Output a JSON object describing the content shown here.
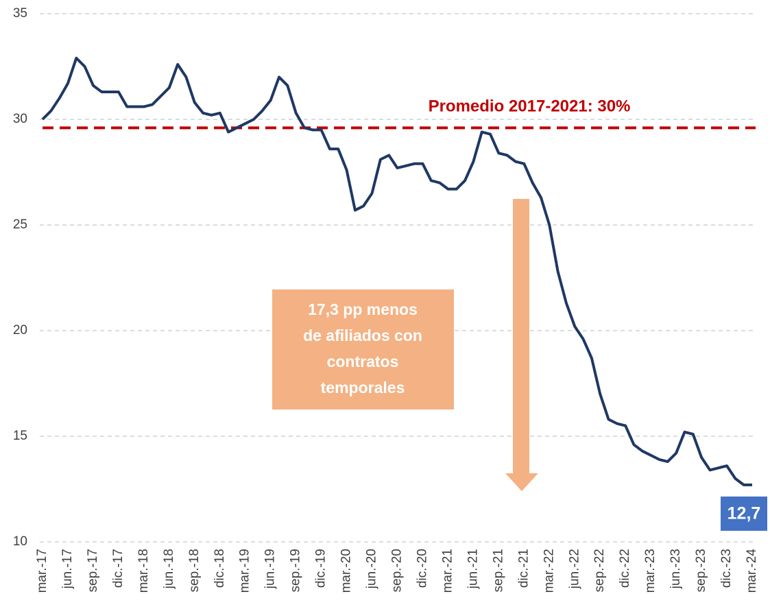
{
  "chart_data": {
    "type": "line",
    "categories": [
      "mar.-17",
      null,
      null,
      "jun.-17",
      null,
      null,
      "sep.-17",
      null,
      null,
      "dic.-17",
      null,
      null,
      "mar.-18",
      null,
      null,
      "jun.-18",
      null,
      null,
      "sep.-18",
      null,
      null,
      "dic.-18",
      null,
      null,
      "mar.-19",
      null,
      null,
      "jun.-19",
      null,
      null,
      "sep.-19",
      null,
      null,
      "dic.-19",
      null,
      null,
      "mar.-20",
      null,
      null,
      "jun.-20",
      null,
      null,
      "sep.-20",
      null,
      null,
      "dic.-20",
      null,
      null,
      "mar.-21",
      null,
      null,
      "jun.-21",
      null,
      null,
      "sep.-21",
      null,
      null,
      "dic.-21",
      null,
      null,
      "mar.-22",
      null,
      null,
      "jun.-22",
      null,
      null,
      "sep.-22",
      null,
      null,
      "dic.-22",
      null,
      null,
      "mar.-23",
      null,
      null,
      "jun.-23",
      null,
      null,
      "sep.-23",
      null,
      null,
      "dic.-23",
      null,
      null,
      "mar.-24"
    ],
    "values": [
      30.0,
      30.4,
      31.0,
      31.7,
      32.9,
      32.5,
      31.6,
      31.3,
      31.3,
      31.3,
      30.6,
      30.6,
      30.6,
      30.7,
      31.1,
      31.5,
      32.6,
      32.0,
      30.8,
      30.3,
      30.2,
      30.3,
      29.4,
      29.6,
      29.8,
      30.0,
      30.4,
      30.9,
      32.0,
      31.6,
      30.3,
      29.6,
      29.5,
      29.5,
      28.6,
      28.6,
      27.6,
      25.7,
      25.9,
      26.5,
      28.1,
      28.3,
      27.7,
      27.8,
      27.9,
      27.9,
      27.1,
      27.0,
      26.7,
      26.7,
      27.1,
      28.0,
      29.4,
      29.3,
      28.4,
      28.3,
      28.0,
      27.9,
      27.0,
      26.3,
      25.0,
      22.8,
      21.3,
      20.2,
      19.6,
      18.7,
      17.0,
      15.8,
      15.6,
      15.5,
      14.6,
      14.3,
      14.1,
      13.9,
      13.8,
      14.2,
      15.2,
      15.1,
      14.0,
      13.4,
      13.5,
      13.6,
      13.0,
      12.7,
      12.7
    ],
    "value_labels": [
      null,
      null,
      null,
      null,
      null,
      null,
      null,
      null,
      null,
      null,
      null,
      null,
      null,
      null,
      null,
      null,
      null,
      null,
      null,
      null,
      null,
      null,
      null,
      null,
      null,
      null,
      null,
      null,
      null,
      null,
      null,
      null,
      null,
      null,
      null,
      null,
      null,
      null,
      null,
      null,
      null,
      null,
      null,
      null,
      null,
      null,
      null,
      null,
      null,
      null,
      null,
      null,
      null,
      null,
      null,
      null,
      null,
      null,
      null,
      null,
      null,
      null,
      null,
      null,
      null,
      null,
      null,
      null,
      null,
      null,
      null,
      null,
      null,
      null,
      null,
      null,
      null,
      null,
      null,
      null,
      null,
      null,
      null,
      null,
      "12,7"
    ],
    "color": "#1f3864",
    "value_label_color": "#4472c4",
    "ylim": [
      10,
      35
    ],
    "yticks": [
      10,
      15,
      20,
      25,
      30,
      35
    ],
    "grid": true,
    "reference_line": {
      "value": 29.6,
      "label": "Promedio 2017-2021: 30%",
      "color": "#c00000"
    },
    "annotation": {
      "lines": [
        "17,3 pp menos",
        "de afiliados con",
        "contratos",
        "temporales"
      ],
      "color": "#f4b183"
    }
  }
}
